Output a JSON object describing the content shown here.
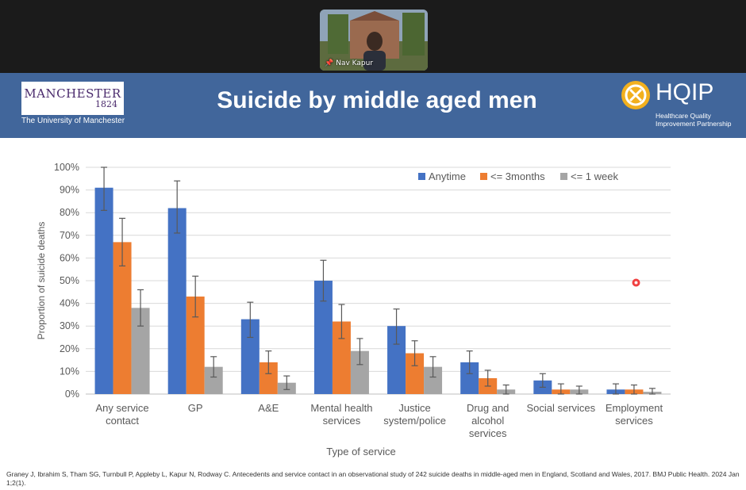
{
  "participant": {
    "name": "Nav Kapur",
    "pin_icon": "pin-icon"
  },
  "slide": {
    "title": "Suicide by middle aged men",
    "logo_left": {
      "name": "MANCHESTER",
      "year": "1824",
      "subtitle": "The University of Manchester"
    },
    "logo_right": {
      "name": "HQIP",
      "subtitle_line1": "Healthcare Quality",
      "subtitle_line2": "Improvement Partnership"
    },
    "reference": "Graney J, Ibrahim S, Tham SG, Turnbull P, Appleby L, Kapur N, Rodway C. Antecedents and service contact in an observational study of 242 suicide deaths in middle-aged men in England, Scotland and Wales, 2017. BMJ Public Health. 2024 Jan 1;2(1)."
  },
  "chart_data": {
    "type": "bar",
    "categories": [
      [
        "Any service",
        "contact"
      ],
      [
        "GP"
      ],
      [
        "A&E"
      ],
      [
        "Mental health",
        "services"
      ],
      [
        "Justice",
        "system/police"
      ],
      [
        "Drug and",
        "alcohol",
        "services"
      ],
      [
        "Social services"
      ],
      [
        "Employment",
        "services"
      ]
    ],
    "series": [
      {
        "name": "Anytime",
        "color": "#4472c4",
        "values": [
          91,
          82,
          33,
          50,
          30,
          14,
          6,
          2
        ],
        "err_low": [
          81,
          71,
          25,
          41,
          22,
          9,
          3,
          0
        ],
        "err_high": [
          100,
          94,
          40.5,
          59,
          37.5,
          19,
          9,
          4.5
        ]
      },
      {
        "name": "<= 3months",
        "color": "#ed7d31",
        "values": [
          67,
          43,
          14,
          32,
          18,
          7,
          2,
          2
        ],
        "err_low": [
          56.5,
          34,
          9,
          24.5,
          12.5,
          3.5,
          0,
          0
        ],
        "err_high": [
          77.5,
          52,
          19,
          39.5,
          23.5,
          10.5,
          4.5,
          4
        ]
      },
      {
        "name": "<= 1 week",
        "color": "#a5a5a5",
        "values": [
          38,
          12,
          5,
          19,
          12,
          2,
          2,
          1
        ],
        "err_low": [
          30,
          7.5,
          2,
          13,
          7.5,
          0,
          0,
          0
        ],
        "err_high": [
          46,
          16.5,
          8,
          24.5,
          16.5,
          4,
          3.5,
          2.5
        ]
      }
    ],
    "ylabel": "Proportion of suicide deaths",
    "xlabel": "Type of service",
    "ylim": [
      0,
      100
    ],
    "yticks": [
      "0%",
      "10%",
      "20%",
      "30%",
      "40%",
      "50%",
      "60%",
      "70%",
      "80%",
      "90%",
      "100%"
    ],
    "grid": true,
    "legend": "top-right"
  }
}
